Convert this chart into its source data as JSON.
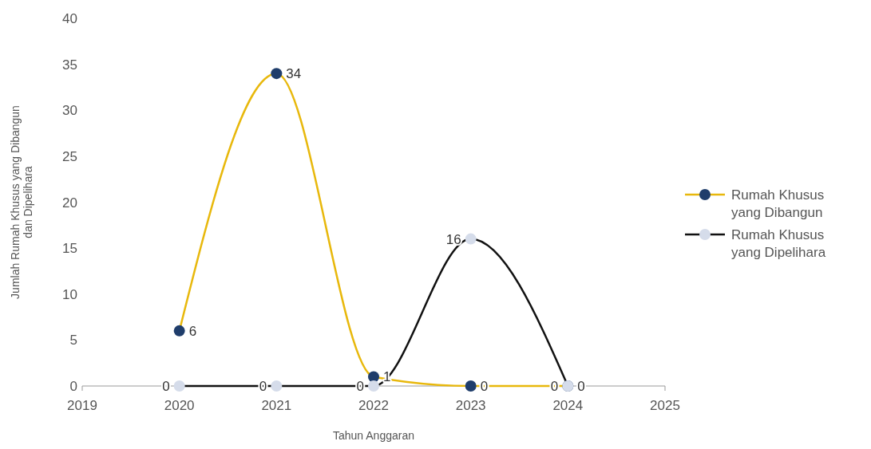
{
  "chart_data": {
    "type": "line",
    "xlabel": "Tahun Anggaran",
    "ylabel": "Jumlah Rumah Khusus yang Dibangun dan Dipelihara",
    "x": [
      2020,
      2021,
      2022,
      2023,
      2024
    ],
    "series": [
      {
        "name": "Rumah Khusus yang Dibangun",
        "color": "#e8b80c",
        "colors": [
          "#1f3d6b",
          "#1f3d6b",
          "#1f3d6b",
          "#1f3d6b",
          "#1f3d6b"
        ],
        "values": [
          6,
          34,
          1,
          0,
          0
        ]
      },
      {
        "name": "Rumah Khusus yang Dipelihara",
        "color": "#111111",
        "colors": [
          "#d5dcea",
          "#d5dcea",
          "#d5dcea",
          "#d5dcea",
          "#d5dcea"
        ],
        "values": [
          0,
          0,
          0,
          16,
          0
        ]
      }
    ],
    "xlim": [
      2019,
      2025
    ],
    "xticks": [
      2019,
      2020,
      2021,
      2022,
      2023,
      2024,
      2025
    ],
    "ylim": [
      0,
      40
    ],
    "yticks": [
      0,
      5,
      10,
      15,
      20,
      25,
      30,
      35,
      40
    ],
    "data_labels": true,
    "legend": "right",
    "marker": "circle",
    "line_style": "solid",
    "grid": false
  }
}
